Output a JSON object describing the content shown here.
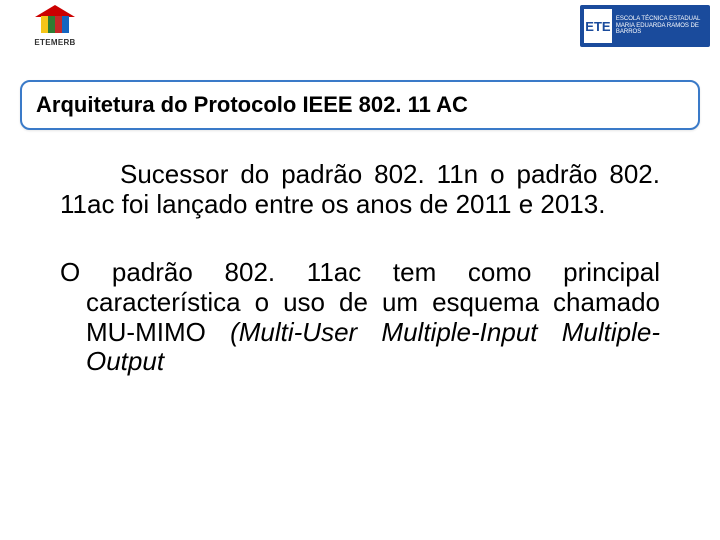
{
  "logo_left": {
    "label": "ETEMERB",
    "sublabel": "",
    "stripe_colors": [
      "#f5c518",
      "#2e7d32",
      "#c62828",
      "#1565c0"
    ],
    "roof_color": "#cc0000"
  },
  "logo_right": {
    "abbr": "ETE",
    "line1": "ESCOLA TÉCNICA ESTADUAL",
    "line2": "MARIA EDUARDA RAMOS DE BARROS",
    "bg_color": "#1a4b9c"
  },
  "title": "Arquitetura do Protocolo IEEE 802. 11 AC",
  "title_border_color": "#3a7ac8",
  "paragraph1": "Sucessor do padrão 802. 11n o padrão 802. 11ac foi lançado entre os anos de 2011 e 2013.",
  "paragraph2_plain": "O padrão 802. 11ac tem como principal característica o uso de um esquema chamado MU-MIMO ",
  "paragraph2_italic": "(Multi-User Multiple-Input Multiple-Output",
  "colors": {
    "background": "#ffffff",
    "text": "#000000"
  }
}
